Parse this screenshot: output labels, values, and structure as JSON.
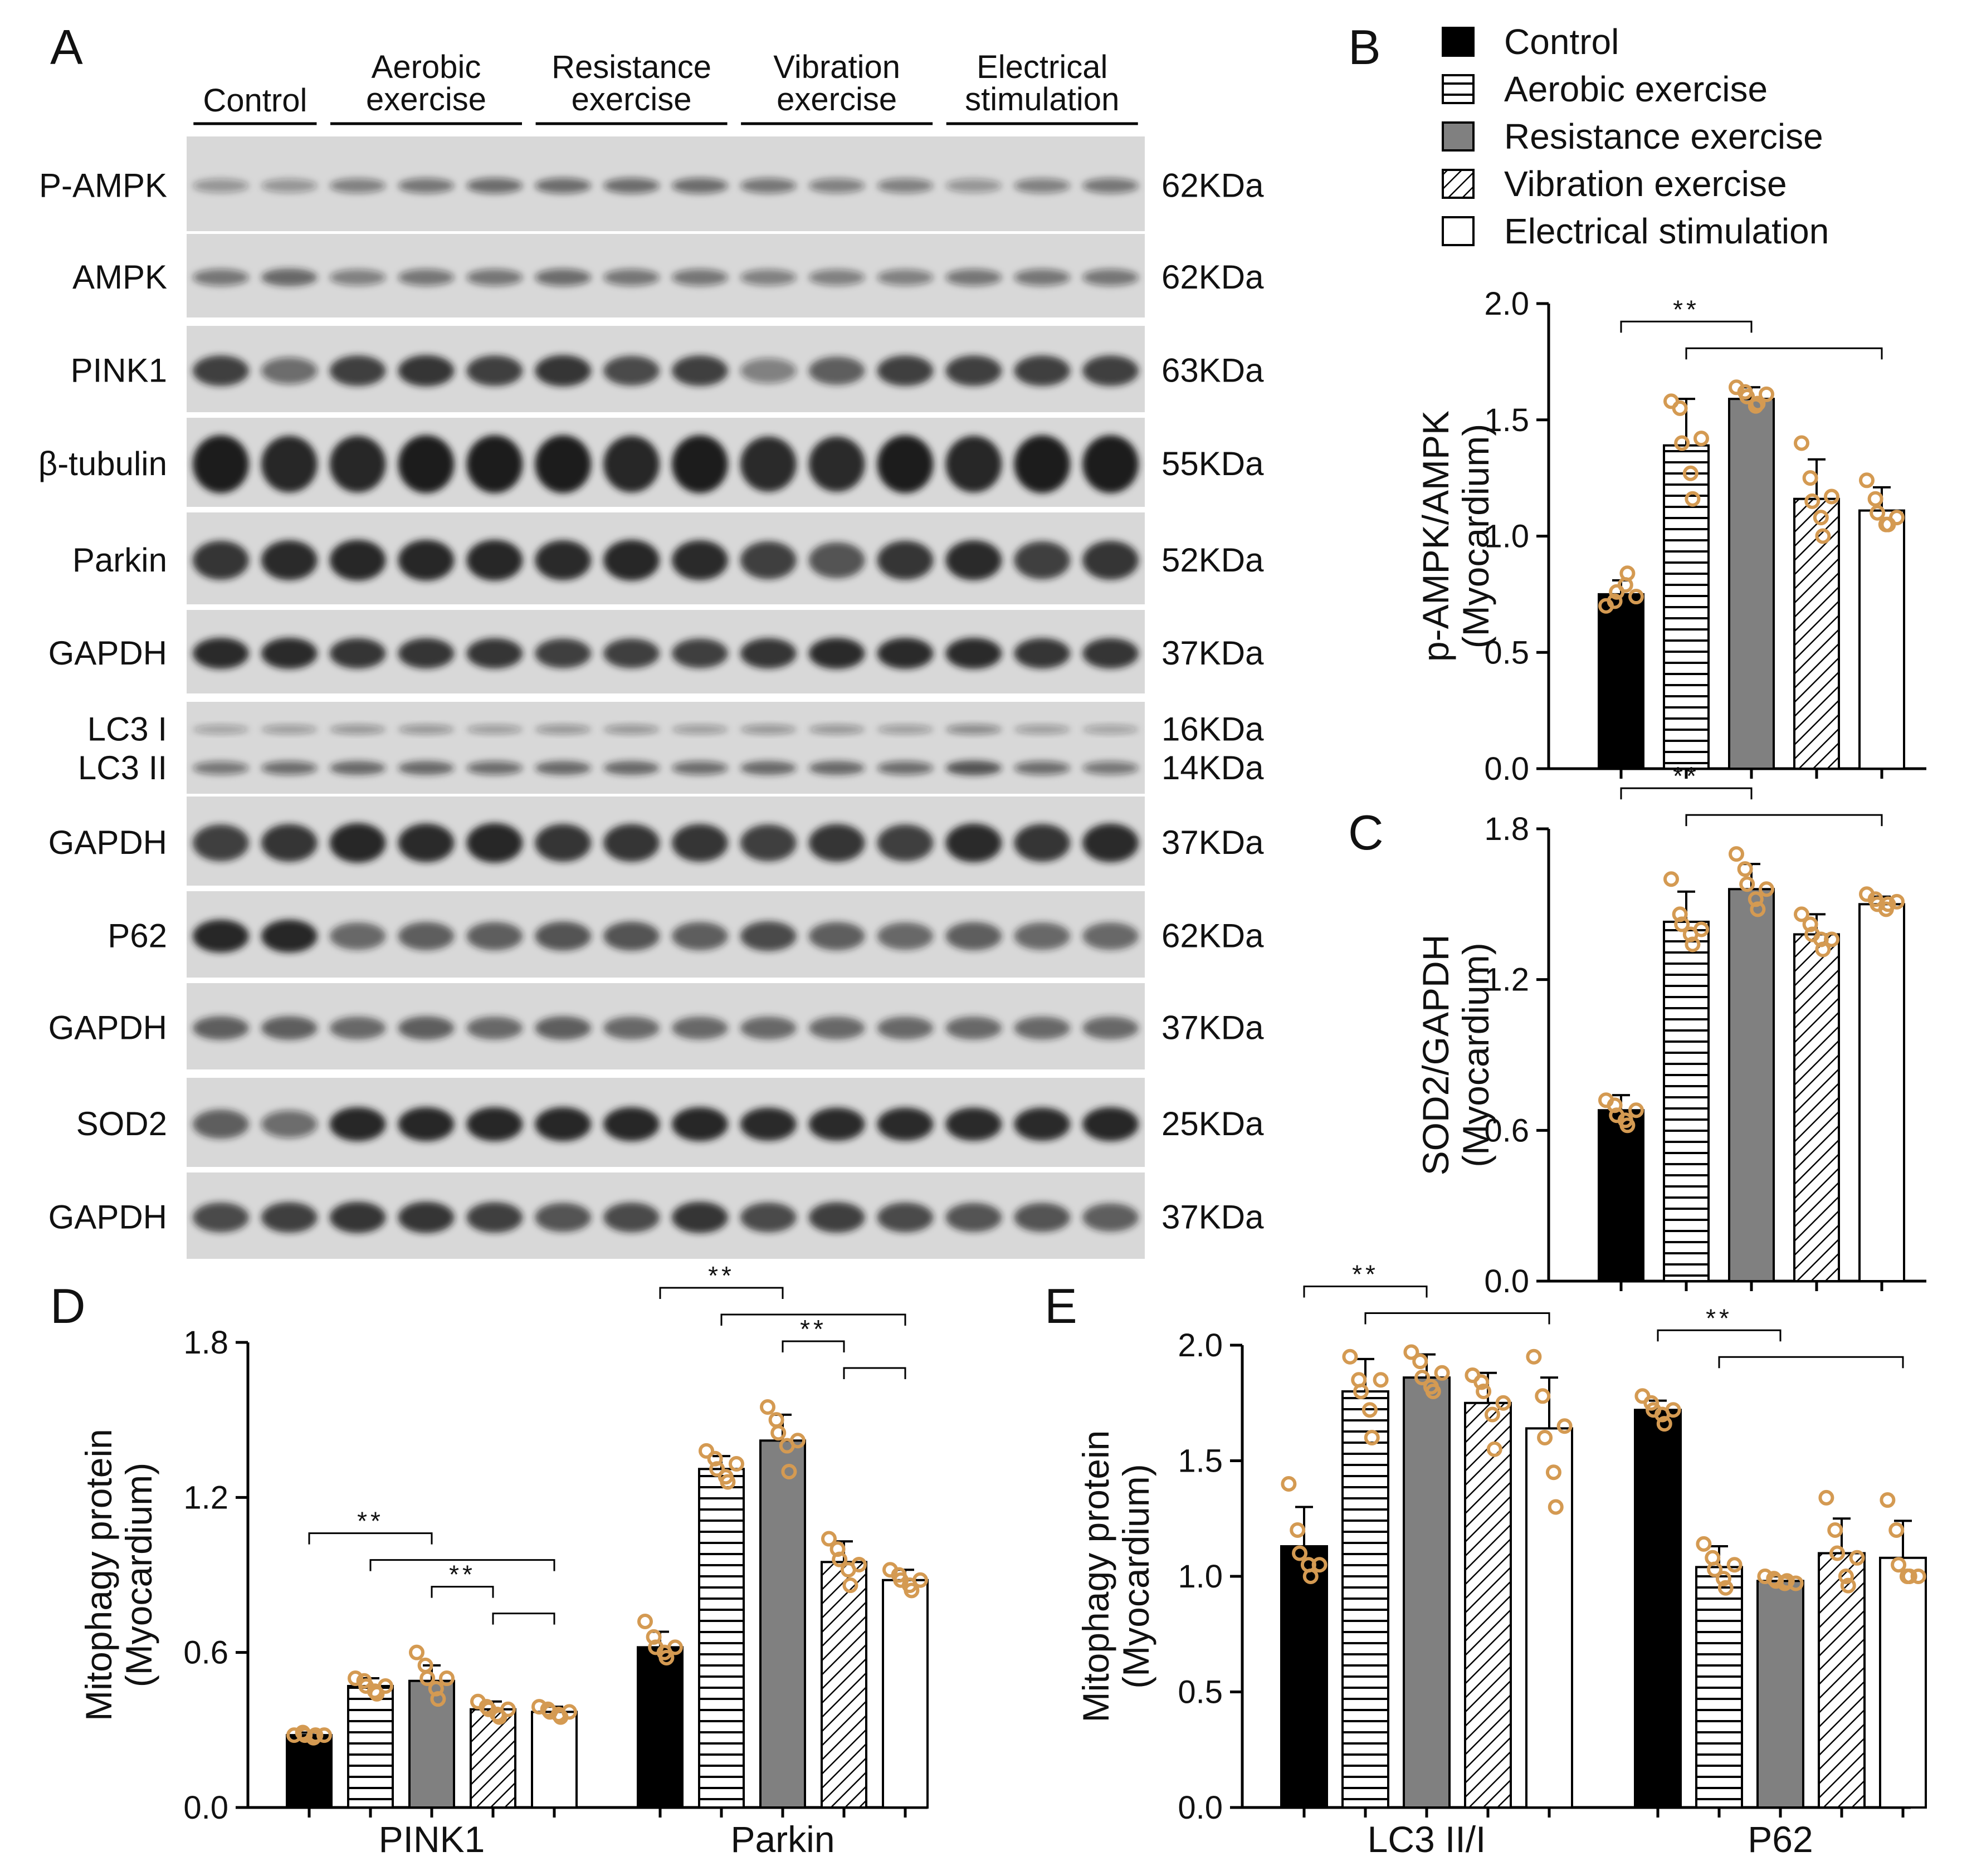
{
  "colors": {
    "black": "#000000",
    "gray": "#808080",
    "white": "#ffffff",
    "dot": "#d49a52",
    "blot_bg": "#d8d8d8",
    "band": "#1a1a1a"
  },
  "panel_a": {
    "letter": "A",
    "group_labels": [
      {
        "lines": [
          "Control"
        ],
        "lanes": [
          0,
          1
        ]
      },
      {
        "lines": [
          "Aerobic",
          "exercise"
        ],
        "lanes": [
          2,
          4
        ]
      },
      {
        "lines": [
          "Resistance",
          "exercise"
        ],
        "lanes": [
          5,
          7
        ]
      },
      {
        "lines": [
          "Vibration",
          "exercise"
        ],
        "lanes": [
          8,
          10
        ]
      },
      {
        "lines": [
          "Electrical",
          "stimulation"
        ],
        "lanes": [
          11,
          13
        ]
      }
    ],
    "blots": [
      {
        "label": "P-AMPK",
        "kda": "62KDa",
        "intensity": [
          0.35,
          0.35,
          0.45,
          0.5,
          0.55,
          0.55,
          0.55,
          0.55,
          0.5,
          0.45,
          0.45,
          0.35,
          0.45,
          0.5
        ],
        "band_height": 0.16
      },
      {
        "label": "AMPK",
        "kda": "62KDa",
        "intensity": [
          0.5,
          0.6,
          0.45,
          0.5,
          0.5,
          0.55,
          0.5,
          0.5,
          0.45,
          0.45,
          0.45,
          0.5,
          0.5,
          0.5
        ],
        "band_height": 0.2
      },
      {
        "label": "PINK1",
        "kda": "63KDa",
        "intensity": [
          0.8,
          0.55,
          0.8,
          0.85,
          0.8,
          0.85,
          0.75,
          0.8,
          0.45,
          0.65,
          0.8,
          0.8,
          0.8,
          0.8
        ],
        "band_height": 0.3
      },
      {
        "label": "β-tubulin",
        "kda": "55KDa",
        "intensity": [
          1,
          0.95,
          0.95,
          1,
          1,
          1,
          0.95,
          1,
          0.9,
          0.9,
          1,
          0.95,
          1,
          1
        ],
        "band_height": 0.5
      },
      {
        "label": "Parkin",
        "kda": "52KDa",
        "intensity": [
          0.85,
          0.9,
          0.95,
          0.95,
          0.95,
          0.9,
          0.95,
          0.9,
          0.8,
          0.7,
          0.85,
          0.9,
          0.8,
          0.85
        ],
        "band_height": 0.35
      },
      {
        "label": "GAPDH",
        "kda": "37KDa",
        "intensity": [
          0.9,
          0.9,
          0.85,
          0.85,
          0.85,
          0.8,
          0.8,
          0.8,
          0.85,
          0.9,
          0.9,
          0.9,
          0.85,
          0.85
        ],
        "band_height": 0.3
      },
      {
        "label": "LC3 I / LC3 II",
        "kda": "16KDa / 14KDa",
        "intensity": [
          0.5,
          0.55,
          0.6,
          0.6,
          0.55,
          0.6,
          0.6,
          0.55,
          0.6,
          0.6,
          0.55,
          0.7,
          0.55,
          0.5
        ],
        "band_height": 0.12
      },
      {
        "label": "GAPDH",
        "kda": "37KDa",
        "intensity": [
          0.8,
          0.85,
          0.95,
          0.9,
          0.95,
          0.85,
          0.85,
          0.85,
          0.8,
          0.85,
          0.8,
          0.9,
          0.85,
          0.9
        ],
        "band_height": 0.35
      },
      {
        "label": "P62",
        "kda": "62KDa",
        "intensity": [
          0.95,
          0.95,
          0.6,
          0.65,
          0.65,
          0.7,
          0.7,
          0.65,
          0.75,
          0.65,
          0.6,
          0.65,
          0.6,
          0.6
        ],
        "band_height": 0.3
      },
      {
        "label": "GAPDH",
        "kda": "37KDa",
        "intensity": [
          0.65,
          0.65,
          0.6,
          0.65,
          0.6,
          0.65,
          0.6,
          0.6,
          0.6,
          0.6,
          0.6,
          0.6,
          0.6,
          0.6
        ],
        "band_height": 0.25
      },
      {
        "label": "SOD2",
        "kda": "25KDa",
        "intensity": [
          0.65,
          0.55,
          0.95,
          0.95,
          0.95,
          0.95,
          0.95,
          0.95,
          0.9,
          0.9,
          0.9,
          0.9,
          0.9,
          0.95
        ],
        "band_height": 0.3
      },
      {
        "label": "GAPDH",
        "kda": "37KDa",
        "intensity": [
          0.75,
          0.8,
          0.85,
          0.85,
          0.8,
          0.7,
          0.75,
          0.85,
          0.75,
          0.8,
          0.75,
          0.7,
          0.7,
          0.65
        ],
        "band_height": 0.3
      }
    ]
  },
  "legend": {
    "items": [
      {
        "label": "Control",
        "style": "black"
      },
      {
        "label": "Aerobic exercise",
        "style": "hstripe"
      },
      {
        "label": "Resistance exercise",
        "style": "gray"
      },
      {
        "label": "Vibration exercise",
        "style": "diag"
      },
      {
        "label": "Electrical stimulation",
        "style": "white"
      }
    ]
  },
  "chart_data": [
    {
      "panel": "B",
      "type": "bar",
      "ylabel": "p-AMPK/AMPK",
      "ylabel2": "(Myocardium)",
      "ylim": [
        0,
        2.0
      ],
      "yticks": [
        0.0,
        0.5,
        1.0,
        1.5,
        2.0
      ],
      "tick_labels": [
        "0.0",
        "0.5",
        "1.0",
        "1.5",
        "2.0"
      ],
      "categories": [
        ""
      ],
      "series": [
        {
          "name": "Control",
          "values": [
            0.75
          ],
          "err": [
            0.06
          ],
          "points": [
            [
              0.7,
              0.72,
              0.76,
              0.79,
              0.84,
              0.74
            ]
          ]
        },
        {
          "name": "Aerobic exercise",
          "values": [
            1.39
          ],
          "err": [
            0.2
          ],
          "points": [
            [
              1.58,
              1.55,
              1.4,
              1.27,
              1.16,
              1.42
            ]
          ]
        },
        {
          "name": "Resistance exercise",
          "values": [
            1.59
          ],
          "err": [
            0.05
          ],
          "points": [
            [
              1.64,
              1.62,
              1.6,
              1.56,
              1.57,
              1.61
            ]
          ]
        },
        {
          "name": "Vibration exercise",
          "values": [
            1.16
          ],
          "err": [
            0.17
          ],
          "points": [
            [
              1.4,
              1.25,
              1.15,
              1.08,
              1.0,
              1.17
            ]
          ]
        },
        {
          "name": "Electrical stimulation",
          "values": [
            1.11
          ],
          "err": [
            0.1
          ],
          "points": [
            [
              1.24,
              1.16,
              1.1,
              1.05,
              1.05,
              1.08
            ]
          ]
        }
      ],
      "significance": [
        {
          "from_series": 0,
          "to_series": 2,
          "level": 1,
          "label": "**"
        },
        {
          "from_series": 1,
          "to_series": 4,
          "level": 0,
          "label": ""
        }
      ]
    },
    {
      "panel": "C",
      "type": "bar",
      "ylabel": "SOD2/GAPDH",
      "ylabel2": "(Myocardium)",
      "ylim": [
        0,
        1.8
      ],
      "yticks": [
        0.0,
        0.6,
        1.2,
        1.8
      ],
      "tick_labels": [
        "0.0",
        "0.6",
        "1.2",
        "1.8"
      ],
      "categories": [
        ""
      ],
      "series": [
        {
          "name": "Control",
          "values": [
            0.68
          ],
          "err": [
            0.06
          ],
          "points": [
            [
              0.72,
              0.7,
              0.66,
              0.64,
              0.62,
              0.68
            ]
          ]
        },
        {
          "name": "Aerobic exercise",
          "values": [
            1.43
          ],
          "err": [
            0.12
          ],
          "points": [
            [
              1.6,
              1.46,
              1.42,
              1.38,
              1.34,
              1.4
            ]
          ]
        },
        {
          "name": "Resistance exercise",
          "values": [
            1.56
          ],
          "err": [
            0.1
          ],
          "points": [
            [
              1.7,
              1.64,
              1.58,
              1.52,
              1.48,
              1.56
            ]
          ]
        },
        {
          "name": "Vibration exercise",
          "values": [
            1.38
          ],
          "err": [
            0.08
          ],
          "points": [
            [
              1.46,
              1.42,
              1.38,
              1.36,
              1.32,
              1.36
            ]
          ]
        },
        {
          "name": "Electrical stimulation",
          "values": [
            1.5
          ],
          "err": [
            0.03
          ],
          "points": [
            [
              1.54,
              1.52,
              1.5,
              1.48,
              1.5,
              1.51
            ]
          ]
        }
      ],
      "significance": [
        {
          "from_series": 0,
          "to_series": 2,
          "level": 1,
          "label": "**"
        },
        {
          "from_series": 1,
          "to_series": 4,
          "level": 0,
          "label": ""
        }
      ]
    },
    {
      "panel": "D",
      "type": "bar",
      "ylabel": "Mitophagy protein",
      "ylabel2": "(Myocardium)",
      "ylim": [
        0,
        1.8
      ],
      "yticks": [
        0.0,
        0.6,
        1.2,
        1.8
      ],
      "tick_labels": [
        "0.0",
        "0.6",
        "1.2",
        "1.8"
      ],
      "categories": [
        "PINK1",
        "Parkin"
      ],
      "series": [
        {
          "name": "Control",
          "values": [
            0.28,
            0.62
          ],
          "err": [
            0.01,
            0.06
          ],
          "points": [
            [
              0.28,
              0.29,
              0.28,
              0.27,
              0.28,
              0.28
            ],
            [
              0.72,
              0.66,
              0.62,
              0.6,
              0.58,
              0.62
            ]
          ]
        },
        {
          "name": "Aerobic exercise",
          "values": [
            0.47,
            1.31
          ],
          "err": [
            0.03,
            0.05
          ],
          "points": [
            [
              0.5,
              0.49,
              0.47,
              0.45,
              0.44,
              0.47
            ],
            [
              1.38,
              1.35,
              1.31,
              1.28,
              1.26,
              1.33
            ]
          ]
        },
        {
          "name": "Resistance exercise",
          "values": [
            0.49,
            1.42
          ],
          "err": [
            0.06,
            0.1
          ],
          "points": [
            [
              0.6,
              0.55,
              0.5,
              0.46,
              0.42,
              0.5
            ],
            [
              1.55,
              1.5,
              1.45,
              1.4,
              1.3,
              1.42
            ]
          ]
        },
        {
          "name": "Vibration exercise",
          "values": [
            0.38,
            0.95
          ],
          "err": [
            0.03,
            0.08
          ],
          "points": [
            [
              0.41,
              0.39,
              0.38,
              0.36,
              0.35,
              0.38
            ],
            [
              1.04,
              1.0,
              0.96,
              0.92,
              0.86,
              0.94
            ]
          ]
        },
        {
          "name": "Electrical stimulation",
          "values": [
            0.37,
            0.88
          ],
          "err": [
            0.02,
            0.04
          ],
          "points": [
            [
              0.39,
              0.38,
              0.37,
              0.36,
              0.35,
              0.37
            ],
            [
              0.92,
              0.9,
              0.88,
              0.86,
              0.84,
              0.88
            ]
          ]
        }
      ],
      "significance_groups": [
        {
          "category": 0,
          "brackets": [
            {
              "from_series": 0,
              "to_series": 2,
              "level": 3,
              "label": "**"
            },
            {
              "from_series": 1,
              "to_series": 4,
              "level": 2,
              "label": ""
            },
            {
              "from_series": 2,
              "to_series": 3,
              "level": 1,
              "label": "**"
            },
            {
              "from_series": 3,
              "to_series": 4,
              "level": 0,
              "label": ""
            }
          ]
        },
        {
          "category": 1,
          "brackets": [
            {
              "from_series": 0,
              "to_series": 2,
              "level": 3,
              "label": "**"
            },
            {
              "from_series": 1,
              "to_series": 4,
              "level": 2,
              "label": ""
            },
            {
              "from_series": 2,
              "to_series": 3,
              "level": 1,
              "label": "**"
            },
            {
              "from_series": 3,
              "to_series": 4,
              "level": 0,
              "label": ""
            }
          ]
        }
      ]
    },
    {
      "panel": "E",
      "type": "bar",
      "ylabel": "Mitophagy protein",
      "ylabel2": "(Myocardium)",
      "ylim": [
        0,
        2.0
      ],
      "yticks": [
        0.0,
        0.5,
        1.0,
        1.5,
        2.0
      ],
      "tick_labels": [
        "0.0",
        "0.5",
        "1.0",
        "1.5",
        "2.0"
      ],
      "categories": [
        "LC3 II/I",
        "P62"
      ],
      "series": [
        {
          "name": "Control",
          "values": [
            1.13,
            1.72
          ],
          "err": [
            0.17,
            0.04
          ],
          "points": [
            [
              1.4,
              1.2,
              1.1,
              1.05,
              1.0,
              1.05
            ],
            [
              1.78,
              1.75,
              1.72,
              1.7,
              1.66,
              1.72
            ]
          ]
        },
        {
          "name": "Aerobic exercise",
          "values": [
            1.8,
            1.04
          ],
          "err": [
            0.14,
            0.09
          ],
          "points": [
            [
              1.95,
              1.85,
              1.8,
              1.72,
              1.6,
              1.85
            ],
            [
              1.14,
              1.08,
              1.03,
              0.99,
              0.95,
              1.05
            ]
          ]
        },
        {
          "name": "Resistance exercise",
          "values": [
            1.86,
            0.98
          ],
          "err": [
            0.1,
            0.02
          ],
          "points": [
            [
              1.97,
              1.93,
              1.86,
              1.82,
              1.8,
              1.88
            ],
            [
              1.0,
              0.99,
              0.98,
              0.97,
              0.98,
              0.97
            ]
          ]
        },
        {
          "name": "Vibration exercise",
          "values": [
            1.75,
            1.1
          ],
          "err": [
            0.13,
            0.15
          ],
          "points": [
            [
              1.87,
              1.84,
              1.8,
              1.7,
              1.55,
              1.75
            ],
            [
              1.34,
              1.2,
              1.1,
              1.0,
              0.96,
              1.08
            ]
          ]
        },
        {
          "name": "Electrical stimulation",
          "values": [
            1.64,
            1.08
          ],
          "err": [
            0.22,
            0.16
          ],
          "points": [
            [
              1.95,
              1.78,
              1.6,
              1.45,
              1.3,
              1.65
            ],
            [
              1.33,
              1.2,
              1.05,
              1.0,
              1.0,
              1.0
            ]
          ]
        }
      ],
      "significance_groups": [
        {
          "category": 0,
          "brackets": [
            {
              "from_series": 0,
              "to_series": 2,
              "level": 1,
              "label": "**"
            },
            {
              "from_series": 1,
              "to_series": 4,
              "level": 0,
              "label": ""
            }
          ]
        },
        {
          "category": 1,
          "brackets": [
            {
              "from_series": 0,
              "to_series": 2,
              "level": 1,
              "label": "**"
            },
            {
              "from_series": 1,
              "to_series": 4,
              "level": 0,
              "label": ""
            }
          ]
        }
      ]
    }
  ]
}
